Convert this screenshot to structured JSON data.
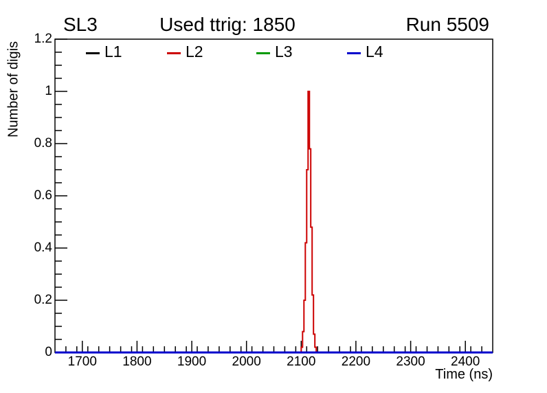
{
  "header": {
    "left": "SL3",
    "right": "Run 5509"
  },
  "legend": {
    "position": "top-inside",
    "entries": [
      {
        "label": "L1",
        "color": "#000000"
      },
      {
        "label": "L2",
        "color": "#cc0000"
      },
      {
        "label": "L3",
        "color": "#009900"
      },
      {
        "label": "L4",
        "color": "#0000cc"
      }
    ]
  },
  "chart_data": {
    "type": "line",
    "title": "Used ttrig: 1850",
    "xlabel": "Time (ns)",
    "ylabel": "Number of digis",
    "grid": false,
    "legend_position": "top",
    "axes": {
      "x": {
        "min": 1650,
        "max": 2450,
        "major_ticks": [
          1700,
          1800,
          1900,
          2000,
          2100,
          2200,
          2300,
          2400
        ],
        "tick_labels": [
          "1700",
          "1800",
          "1900",
          "2000",
          "2100",
          "2200",
          "2300",
          "2400"
        ],
        "minor_step": 20
      },
      "y": {
        "min": 0,
        "max": 1.2,
        "major_ticks": [
          0,
          0.2,
          0.4,
          0.6,
          0.8,
          1,
          1.2
        ],
        "tick_labels": [
          "0",
          "0.2",
          "0.4",
          "0.6",
          "0.8",
          "1",
          "1.2"
        ],
        "minor_step": 0.05
      }
    },
    "series": [
      {
        "name": "L1",
        "color": "#000000",
        "type": "flat",
        "value": 0,
        "line_width": 2
      },
      {
        "name": "L2",
        "color": "#cc0000",
        "type": "bins",
        "bin_start": 2100,
        "bin_width": 2.5,
        "line_width": 2,
        "values": [
          0.02,
          0.08,
          0.2,
          0.42,
          0.7,
          1.0,
          0.78,
          0.48,
          0.22,
          0.07,
          0.02
        ]
      },
      {
        "name": "L3",
        "color": "#009900",
        "type": "flat",
        "value": 0,
        "line_width": 2
      },
      {
        "name": "L4",
        "color": "#0000cc",
        "type": "flat",
        "value": 0,
        "line_width": 3
      }
    ]
  }
}
